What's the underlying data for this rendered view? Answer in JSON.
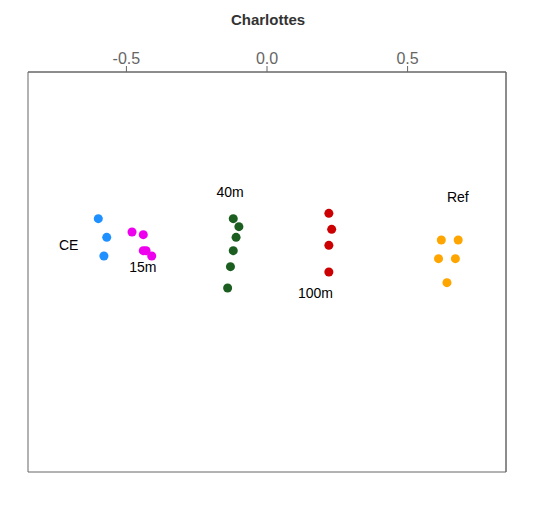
{
  "chart_data": {
    "type": "scatter",
    "title": "Charlottes",
    "xlim": [
      -0.85,
      0.85
    ],
    "ylim": [
      -0.75,
      0.75
    ],
    "xticks": [
      -0.5,
      {
        "value": 0,
        "label": "0.0"
      },
      0.5
    ],
    "yticks": [
      -0.6,
      -0.4,
      -0.2,
      0.0,
      0.2,
      0.4,
      0.6
    ],
    "tick_labels": "x",
    "grid": false,
    "series": [
      {
        "color": "#1E90FF",
        "x": [
          -0.6,
          -0.57,
          -0.58
        ],
        "values": [
          0.2,
          0.13,
          0.06
        ]
      },
      {
        "color": "#EE00EE",
        "x": [
          -0.48,
          -0.44,
          -0.43,
          -0.44,
          -0.41
        ],
        "values": [
          0.15,
          0.14,
          0.08,
          0.08,
          0.06
        ]
      },
      {
        "color": "#1B5E20",
        "x": [
          -0.12,
          -0.1,
          -0.11,
          -0.12,
          -0.13,
          -0.14
        ],
        "values": [
          0.2,
          0.17,
          0.13,
          0.08,
          0.02,
          -0.06
        ]
      },
      {
        "color": "#CC0000",
        "x": [
          0.22,
          0.23,
          0.22,
          0.22
        ],
        "values": [
          0.22,
          0.16,
          0.1,
          0.0
        ]
      },
      {
        "color": "#FFA500",
        "x": [
          0.62,
          0.68,
          0.61,
          0.67,
          0.64
        ],
        "values": [
          0.12,
          0.12,
          0.05,
          0.05,
          -0.04
        ]
      }
    ],
    "annotations": [
      {
        "text": "CE",
        "x": -0.74,
        "y": 0.1
      },
      {
        "text": "15m",
        "x": -0.49,
        "y": 0.02
      },
      {
        "text": "40m",
        "x": -0.18,
        "y": 0.3
      },
      {
        "text": "100m",
        "x": 0.11,
        "y": -0.08
      },
      {
        "text": "Ref",
        "x": 0.64,
        "y": 0.28
      }
    ]
  }
}
